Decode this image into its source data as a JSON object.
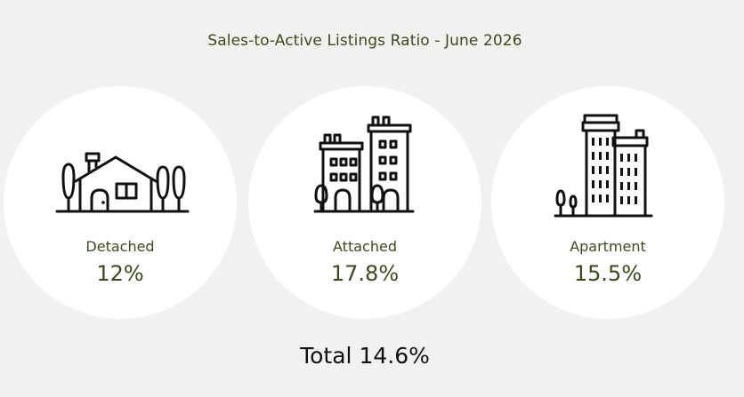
{
  "title": "Sales-to-Active Listings Ratio - June 2026",
  "categories": [
    {
      "icon": "house-icon",
      "label": "Detached",
      "value": "12%"
    },
    {
      "icon": "townhouse-icon",
      "label": "Attached",
      "value": "17.8%"
    },
    {
      "icon": "apartment-building-icon",
      "label": "Apartment",
      "value": "15.5%"
    }
  ],
  "total": "Total 14.6%",
  "colors": {
    "background": "#f2f1ef",
    "circle": "#ffffff",
    "text_green": "#3b4a1f",
    "total_text": "#111111",
    "icon_stroke": "#111111"
  }
}
